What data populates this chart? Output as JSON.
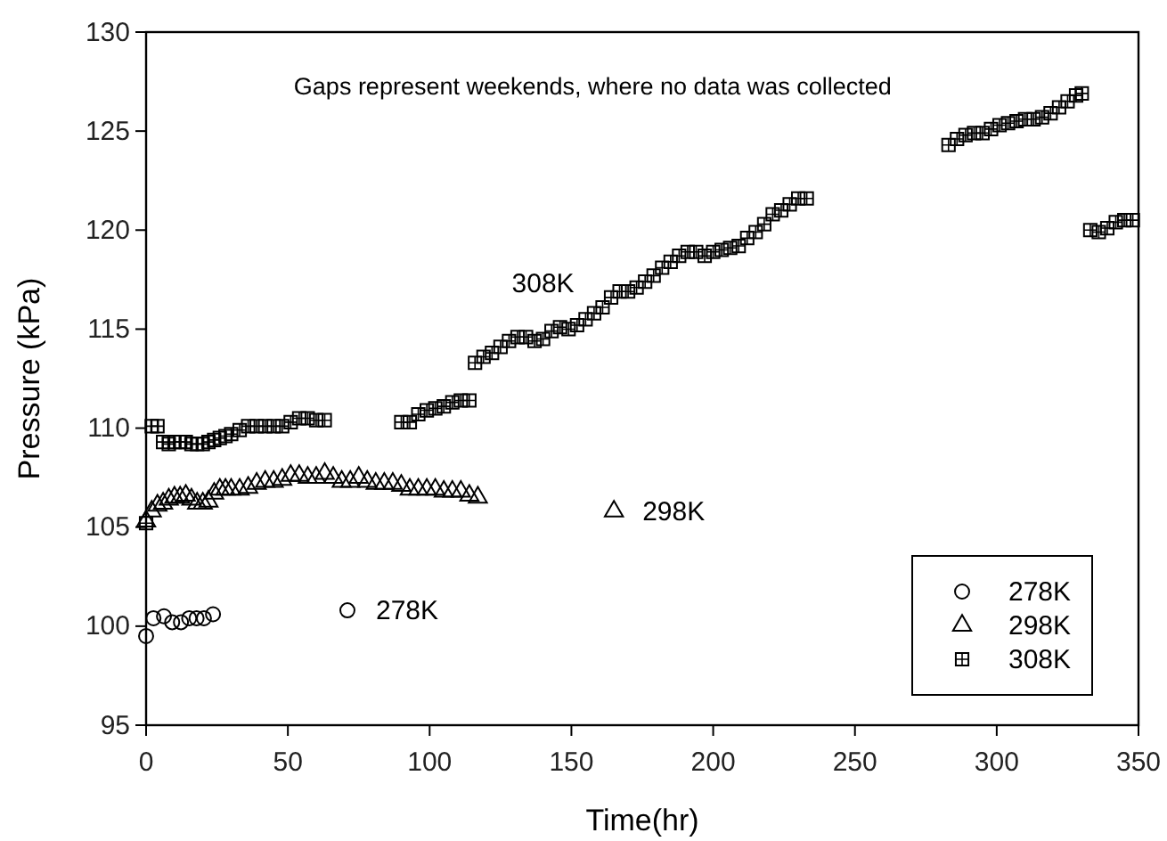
{
  "chart_data": {
    "type": "scatter",
    "xlabel": "Time(hr)",
    "ylabel": "Pressure (kPa)",
    "xlim": [
      0,
      350
    ],
    "xticks": [
      0,
      50,
      100,
      150,
      200,
      250,
      300,
      350
    ],
    "ylim": [
      95,
      130
    ],
    "yticks": [
      95,
      100,
      105,
      110,
      115,
      120,
      125,
      130
    ],
    "grid": false,
    "legend": "bottom right",
    "annotations": [
      "Gaps represent weekends, where no data was collected",
      {
        "text": "278K",
        "x": 71,
        "y": 100.8
      },
      {
        "text": "298K",
        "x": 165,
        "y": 105.8
      },
      "308K"
    ],
    "series": [
      {
        "name": "278K",
        "color": "#000000",
        "marker": "circle",
        "x": [
          0,
          2.6,
          6.3,
          9.2,
          12.3,
          15.2,
          17.8,
          20.4,
          23.6
        ],
        "values": [
          99.5,
          100.4,
          100.5,
          100.2,
          100.2,
          100.4,
          100.4,
          100.4,
          100.6
        ]
      },
      {
        "name": "298K",
        "color": "#000000",
        "marker": "triangle",
        "x": [
          0,
          2,
          4,
          6,
          8,
          10,
          12,
          14,
          16,
          18,
          20,
          22,
          24,
          26,
          28,
          30,
          33,
          36,
          39,
          42,
          45,
          48,
          51,
          54,
          57,
          60,
          63,
          66,
          69,
          72,
          75,
          78,
          81,
          84,
          87,
          90,
          93,
          96,
          99,
          102,
          105,
          108,
          111,
          114,
          117
        ],
        "values": [
          105.3,
          105.8,
          106.1,
          106.2,
          106.4,
          106.5,
          106.5,
          106.6,
          106.4,
          106.2,
          106.2,
          106.3,
          106.7,
          106.9,
          106.9,
          106.9,
          106.9,
          107.0,
          107.2,
          107.3,
          107.3,
          107.4,
          107.6,
          107.6,
          107.5,
          107.5,
          107.7,
          107.5,
          107.3,
          107.3,
          107.5,
          107.3,
          107.2,
          107.2,
          107.2,
          107.1,
          106.9,
          106.9,
          106.9,
          106.9,
          106.8,
          106.8,
          106.8,
          106.6,
          106.5
        ]
      },
      {
        "name": "308K",
        "color": "#000000",
        "marker": "square",
        "x": [
          0,
          2,
          4,
          6,
          8,
          10,
          12,
          14,
          16,
          18,
          20,
          22,
          24,
          26,
          28,
          30,
          33,
          36,
          39,
          42,
          45,
          48,
          51,
          54,
          57,
          60,
          63,
          90,
          93,
          96,
          99,
          102,
          105,
          108,
          111,
          114,
          116,
          119,
          122,
          125,
          128,
          131,
          134,
          137,
          140,
          143,
          146,
          149,
          152,
          155,
          158,
          161,
          164,
          167,
          170,
          173,
          176,
          179,
          182,
          185,
          188,
          191,
          194,
          197,
          200,
          203,
          206,
          209,
          212,
          215,
          218,
          221,
          224,
          227,
          230,
          233,
          283,
          286,
          289,
          292,
          295,
          298,
          301,
          304,
          307,
          310,
          313,
          316,
          319,
          322,
          325,
          328,
          330,
          333,
          336,
          339,
          342,
          345,
          348
        ],
        "values": [
          105.2,
          110.1,
          110.1,
          109.3,
          109.2,
          109.3,
          109.3,
          109.3,
          109.2,
          109.2,
          109.2,
          109.3,
          109.4,
          109.5,
          109.6,
          109.7,
          109.9,
          110.1,
          110.1,
          110.1,
          110.1,
          110.1,
          110.3,
          110.5,
          110.5,
          110.4,
          110.4,
          110.3,
          110.3,
          110.7,
          110.9,
          111.0,
          111.1,
          111.3,
          111.4,
          111.4,
          113.3,
          113.6,
          113.8,
          114.1,
          114.4,
          114.6,
          114.6,
          114.4,
          114.5,
          114.9,
          115.1,
          115.0,
          115.2,
          115.5,
          115.8,
          116.1,
          116.6,
          116.9,
          116.9,
          117.1,
          117.4,
          117.7,
          118.1,
          118.4,
          118.7,
          118.9,
          118.9,
          118.7,
          118.9,
          119.0,
          119.1,
          119.2,
          119.6,
          119.9,
          120.3,
          120.8,
          121.0,
          121.3,
          121.6,
          121.6,
          124.3,
          124.6,
          124.8,
          124.9,
          124.9,
          125.1,
          125.3,
          125.4,
          125.5,
          125.6,
          125.6,
          125.7,
          125.9,
          126.2,
          126.5,
          126.8,
          126.9,
          120.0,
          119.9,
          120.1,
          120.4,
          120.5,
          120.5
        ]
      }
    ]
  }
}
